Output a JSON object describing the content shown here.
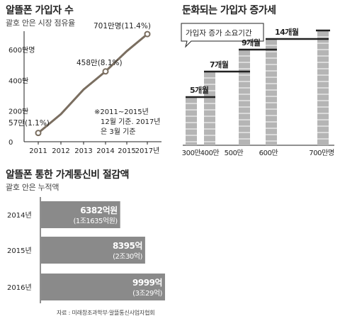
{
  "panel1": {
    "title": "알뜰폰 가입자 수",
    "subtitle": "괄호 안은 시장 점유율",
    "note_lines": [
      "※2011~2015년",
      "12월 기준. 2017년",
      "은 3월 기준"
    ]
  },
  "panel2": {
    "title": "둔화되는 가입자 증가세",
    "callout": "가입자 증가 소요기간"
  },
  "panel3": {
    "title": "알뜰폰 통한 가계통신비 절감액",
    "subtitle": "괄호 안은 누적액",
    "source": "자료 : 미래창조과학부·알뜰통신사업자협회"
  },
  "colors": {
    "line": "#7a6e60",
    "bar": "#8a8a8a",
    "step_bar": "#b5b5b5",
    "axis": "#222222"
  },
  "chart_data": [
    {
      "type": "line",
      "x": [
        "2011",
        "2012",
        "2013",
        "2014",
        "2015",
        "2017년"
      ],
      "values": [
        57,
        180,
        340,
        458,
        590,
        701
      ],
      "unit": "만",
      "yticks": [
        "0",
        "200만",
        "400만",
        "600만명"
      ],
      "ylim": [
        0,
        720
      ],
      "data_labels": [
        {
          "x": "2011",
          "text": "57만(1.1%)"
        },
        {
          "x": "2014",
          "text": "458만(8.1%)"
        },
        {
          "x": "2017년",
          "text": "701만명(11.4%)"
        }
      ],
      "grid": false
    },
    {
      "type": "bar",
      "title": "둔화되는 가입자 증가세",
      "x_ticks": [
        "300만",
        "400만",
        "500만",
        "600만",
        "700만명"
      ],
      "steps": [
        {
          "label": "5개월",
          "from": 300,
          "to": 400
        },
        {
          "label": "7개월",
          "from": 400,
          "to": 500
        },
        {
          "label": "9개월",
          "from": 500,
          "to": 600
        },
        {
          "label": "14개월",
          "from": 600,
          "to": 700
        }
      ],
      "durations_months": [
        5,
        7,
        9,
        14
      ]
    },
    {
      "type": "bar",
      "orientation": "horizontal",
      "categories": [
        "2014년",
        "2015년",
        "2016년"
      ],
      "values": [
        6382,
        8395,
        9999
      ],
      "value_labels": [
        "6382억원",
        "8395억",
        "9999억"
      ],
      "cumulative_labels": [
        "(1조1635억원)",
        "(2조30억)",
        "(3조29억)"
      ],
      "xlim": [
        0,
        10000
      ],
      "grid": false
    }
  ]
}
